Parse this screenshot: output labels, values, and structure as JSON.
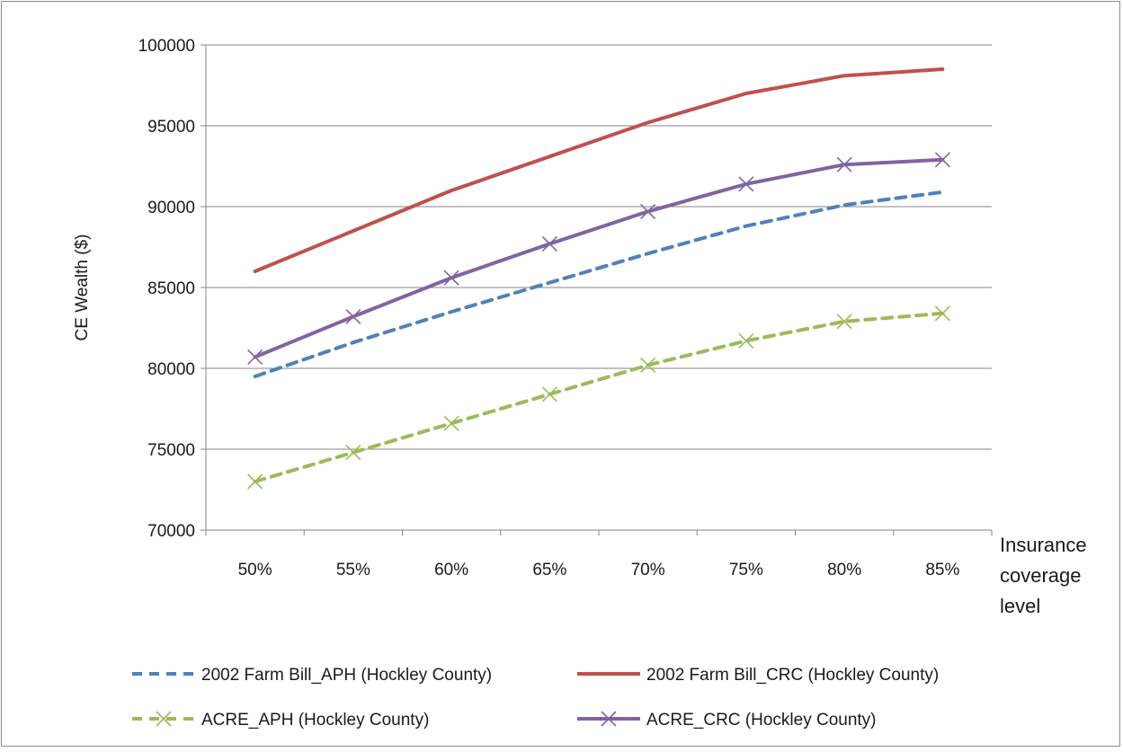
{
  "chart_data": {
    "type": "line",
    "title": "",
    "xlabel": "Insurance coverage level",
    "ylabel": "CE Wealth ($)",
    "categories": [
      "50%",
      "55%",
      "60%",
      "65%",
      "70%",
      "75%",
      "80%",
      "85%"
    ],
    "ylim": [
      70000,
      100000
    ],
    "yticks": [
      70000,
      75000,
      80000,
      85000,
      90000,
      95000,
      100000
    ],
    "grid": "horizontal",
    "legend_position": "bottom",
    "series": [
      {
        "name": "2002 Farm Bill_APH (Hockley County)",
        "values": [
          79500,
          81600,
          83500,
          85300,
          87100,
          88800,
          90100,
          90900
        ],
        "color": "#4f81bd",
        "line_style": "dashed",
        "marker": "none"
      },
      {
        "name": "2002 Farm Bill_CRC (Hockley County)",
        "values": [
          86000,
          88500,
          91000,
          93100,
          95200,
          97000,
          98100,
          98500
        ],
        "color": "#c0504d",
        "line_style": "solid",
        "marker": "none"
      },
      {
        "name": "ACRE_APH (Hockley County)",
        "values": [
          73000,
          74800,
          76600,
          78400,
          80200,
          81700,
          82900,
          83400
        ],
        "color": "#9bbb59",
        "line_style": "dashed",
        "marker": "x"
      },
      {
        "name": "ACRE_CRC (Hockley County)",
        "values": [
          80700,
          83200,
          85600,
          87700,
          89700,
          91400,
          92600,
          92900
        ],
        "color": "#8064a2",
        "line_style": "solid",
        "marker": "x"
      }
    ],
    "legend": {
      "xlabel_lines": [
        "Insurance",
        "coverage",
        "level"
      ]
    }
  }
}
